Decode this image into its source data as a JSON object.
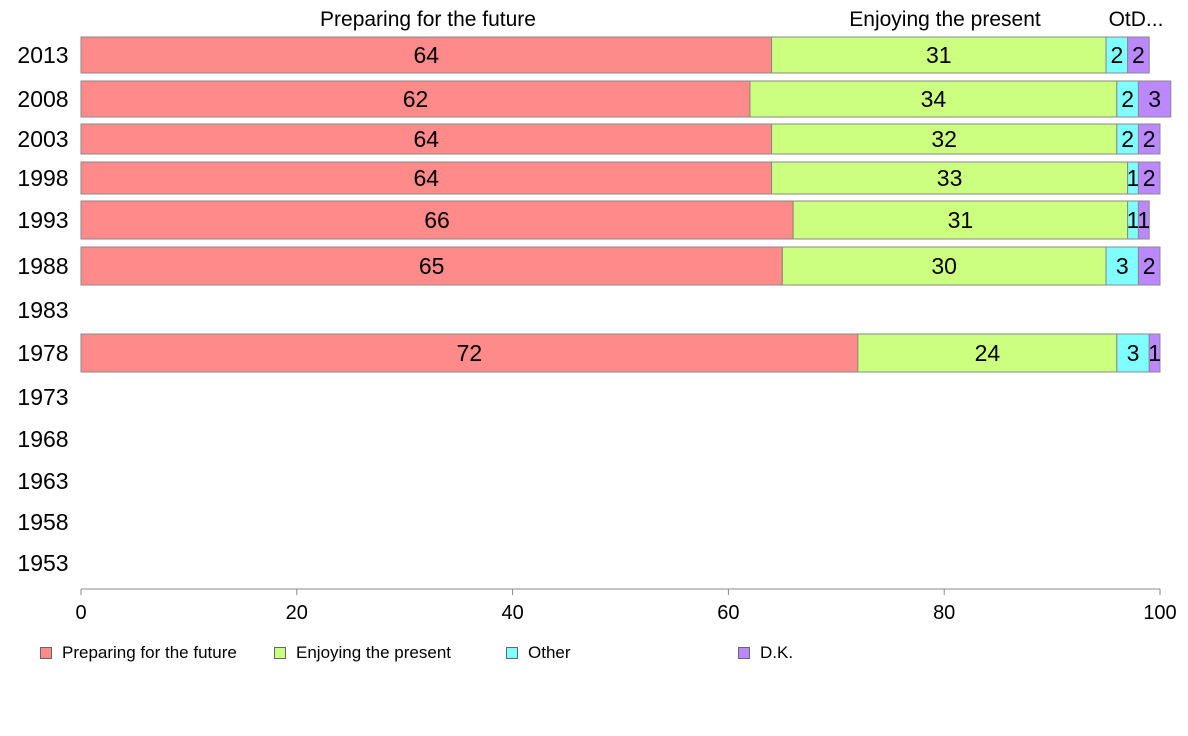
{
  "chart_data": {
    "type": "bar",
    "orientation": "horizontal",
    "stacked": true,
    "categories": [
      "2013",
      "2008",
      "2003",
      "1998",
      "1993",
      "1988",
      "1983",
      "1978",
      "1973",
      "1968",
      "1963",
      "1958",
      "1953"
    ],
    "series": [
      {
        "name": "Preparing for the future",
        "color": "#ff8a8a",
        "values": [
          64,
          62,
          64,
          64,
          66,
          65,
          null,
          72,
          null,
          null,
          null,
          null,
          null
        ]
      },
      {
        "name": "Enjoying the present",
        "color": "#ccff80",
        "values": [
          31,
          34,
          32,
          33,
          31,
          30,
          null,
          24,
          null,
          null,
          null,
          null,
          null
        ]
      },
      {
        "name": "Other",
        "color": "#80ffff",
        "values": [
          2,
          2,
          2,
          1,
          1,
          3,
          null,
          3,
          null,
          null,
          null,
          null,
          null
        ]
      },
      {
        "name": "D.K.",
        "color": "#bb88ff",
        "values": [
          2,
          3,
          2,
          2,
          1,
          2,
          null,
          1,
          null,
          null,
          null,
          null,
          null
        ]
      }
    ],
    "column_headers": [
      "Preparing for the future",
      "Enjoying the present",
      "OtD..."
    ],
    "xlim": [
      0,
      100
    ],
    "xticks": [
      0,
      20,
      40,
      60,
      80,
      100
    ],
    "grid": false,
    "legend_position": "bottom"
  }
}
